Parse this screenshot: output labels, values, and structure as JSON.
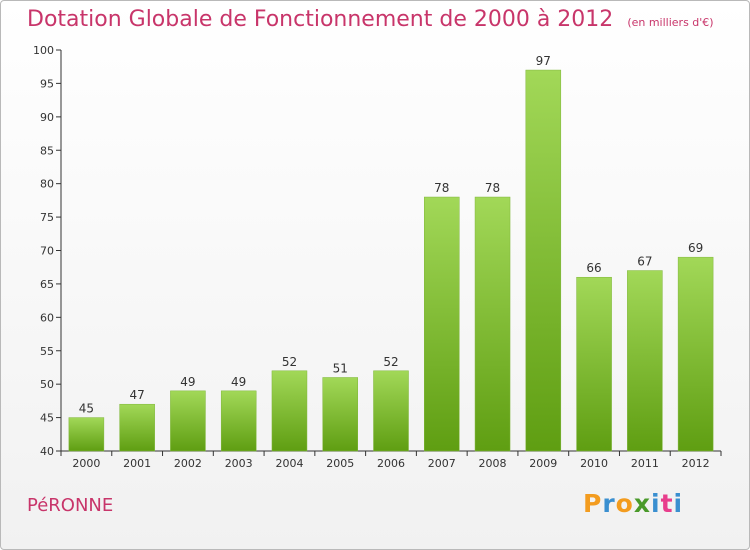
{
  "header": {
    "title": "Dotation Globale de Fonctionnement de 2000 à 2012",
    "unit": "(en milliers d'€)"
  },
  "footer": {
    "city": "PéRONNE",
    "logo_text": "Proxiti"
  },
  "colors": {
    "title": "#c8356a",
    "bar_light": "#a2d858",
    "bar_dark": "#5f9e12",
    "logo_letters": [
      "#f39c1f",
      "#3a8fd0",
      "#f39c1f",
      "#4a9a2a",
      "#3a8fd0",
      "#e83e8c",
      "#3a8fd0"
    ]
  },
  "chart_data": {
    "type": "bar",
    "title": "Dotation Globale de Fonctionnement de 2000 à 2012",
    "subtitle": "(en milliers d'€)",
    "categories": [
      "2000",
      "2001",
      "2002",
      "2003",
      "2004",
      "2005",
      "2006",
      "2007",
      "2008",
      "2009",
      "2010",
      "2011",
      "2012"
    ],
    "values": [
      45,
      47,
      49,
      49,
      52,
      51,
      52,
      78,
      78,
      97,
      66,
      67,
      69
    ],
    "ylim": [
      40,
      100
    ],
    "yticks": [
      40,
      45,
      50,
      55,
      60,
      65,
      70,
      75,
      80,
      85,
      90,
      95,
      100
    ],
    "grid": false,
    "data_labels": true
  }
}
